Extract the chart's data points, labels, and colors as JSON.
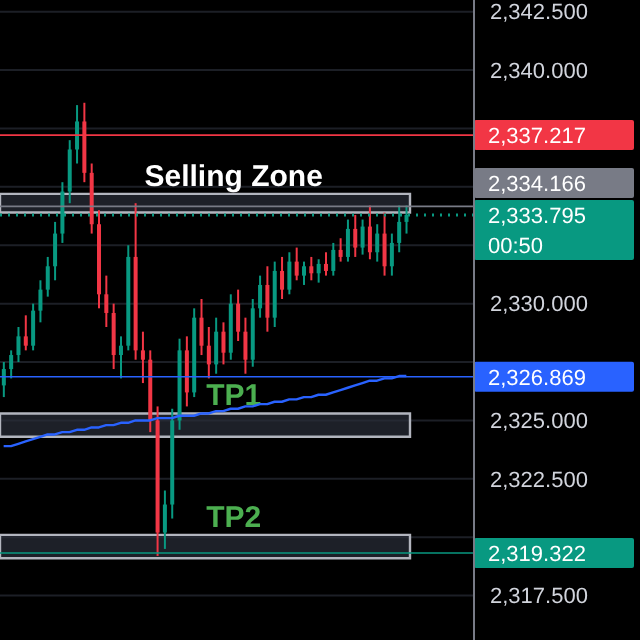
{
  "chart_data": {
    "type": "candlestick",
    "categories": [
      null,
      null,
      null,
      null,
      null,
      null,
      null,
      null,
      null,
      null,
      null,
      null,
      null,
      null,
      null,
      null,
      null,
      null,
      null,
      null,
      null,
      null,
      null,
      null,
      null,
      null,
      null,
      null,
      null,
      null,
      null,
      null,
      null,
      null,
      null,
      null,
      null,
      null,
      null,
      null,
      null,
      null,
      null,
      null,
      null,
      null,
      null,
      null,
      null,
      null,
      null,
      null,
      null,
      null,
      null,
      null
    ],
    "ohlc": [
      [
        2326.5,
        2327.5,
        2326.0,
        2327.2
      ],
      [
        2327.2,
        2328.0,
        2326.8,
        2327.8
      ],
      [
        2327.8,
        2329.0,
        2327.5,
        2328.6
      ],
      [
        2328.6,
        2329.5,
        2328.0,
        2328.2
      ],
      [
        2328.2,
        2330.0,
        2328.0,
        2329.7
      ],
      [
        2329.7,
        2331.0,
        2329.2,
        2330.6
      ],
      [
        2330.6,
        2332.0,
        2330.3,
        2331.6
      ],
      [
        2331.6,
        2333.5,
        2331.0,
        2333.0
      ],
      [
        2333.0,
        2335.2,
        2332.6,
        2334.8
      ],
      [
        2334.8,
        2337.0,
        2334.3,
        2336.6
      ],
      [
        2336.6,
        2338.5,
        2336.0,
        2337.8
      ],
      [
        2337.8,
        2338.6,
        2335.2,
        2335.6
      ],
      [
        2335.6,
        2336.0,
        2333.0,
        2333.4
      ],
      [
        2333.4,
        2334.0,
        2329.8,
        2330.4
      ],
      [
        2330.4,
        2331.2,
        2329.0,
        2329.6
      ],
      [
        2329.6,
        2330.0,
        2327.2,
        2327.8
      ],
      [
        2327.8,
        2328.6,
        2326.8,
        2328.2
      ],
      [
        2328.2,
        2332.5,
        2328.0,
        2332.0
      ],
      [
        2332.0,
        2334.3,
        2327.6,
        2328.0
      ],
      [
        2328.0,
        2328.8,
        2326.6,
        2327.6
      ],
      [
        2327.6,
        2328.0,
        2324.5,
        2325.0
      ],
      [
        2325.0,
        2325.6,
        2319.2,
        2320.2
      ],
      [
        2320.2,
        2322.0,
        2319.5,
        2321.4
      ],
      [
        2321.4,
        2325.5,
        2320.8,
        2325.0
      ],
      [
        2325.0,
        2328.5,
        2324.6,
        2328.0
      ],
      [
        2328.0,
        2328.6,
        2325.6,
        2326.2
      ],
      [
        2326.2,
        2329.8,
        2326.0,
        2329.4
      ],
      [
        2329.4,
        2330.2,
        2327.8,
        2328.2
      ],
      [
        2328.2,
        2329.0,
        2326.8,
        2327.4
      ],
      [
        2327.4,
        2329.4,
        2327.0,
        2328.8
      ],
      [
        2328.8,
        2329.2,
        2327.4,
        2327.9
      ],
      [
        2327.9,
        2330.4,
        2327.6,
        2330.0
      ],
      [
        2330.0,
        2330.6,
        2328.4,
        2328.8
      ],
      [
        2328.8,
        2329.4,
        2327.0,
        2327.6
      ],
      [
        2327.6,
        2330.2,
        2327.3,
        2329.8
      ],
      [
        2329.8,
        2331.2,
        2329.4,
        2330.8
      ],
      [
        2330.8,
        2331.6,
        2328.8,
        2329.4
      ],
      [
        2329.4,
        2331.8,
        2329.0,
        2331.4
      ],
      [
        2331.4,
        2332.0,
        2330.2,
        2330.6
      ],
      [
        2330.6,
        2332.2,
        2330.4,
        2331.8
      ],
      [
        2331.8,
        2332.4,
        2331.0,
        2331.2
      ],
      [
        2331.2,
        2331.8,
        2330.8,
        2331.6
      ],
      [
        2331.6,
        2332.0,
        2331.0,
        2331.3
      ],
      [
        2331.3,
        2331.9,
        2330.9,
        2331.7
      ],
      [
        2331.7,
        2332.2,
        2331.2,
        2331.4
      ],
      [
        2331.4,
        2332.6,
        2331.2,
        2332.3
      ],
      [
        2332.3,
        2332.8,
        2331.8,
        2332.0
      ],
      [
        2332.0,
        2333.6,
        2331.8,
        2333.2
      ],
      [
        2333.2,
        2333.8,
        2332.0,
        2332.4
      ],
      [
        2332.4,
        2333.6,
        2332.1,
        2333.3
      ],
      [
        2333.3,
        2334.2,
        2331.9,
        2332.2
      ],
      [
        2332.2,
        2333.4,
        2331.8,
        2333.0
      ],
      [
        2333.0,
        2333.9,
        2331.2,
        2331.6
      ],
      [
        2331.6,
        2333.0,
        2331.2,
        2332.6
      ],
      [
        2332.6,
        2334.2,
        2332.2,
        2333.5
      ],
      [
        2333.5,
        2334.2,
        2333.0,
        2333.8
      ]
    ],
    "series": [
      {
        "type": "line",
        "color": "#2962ff",
        "values": [
          2323.9,
          2323.9,
          2324.0,
          2324.1,
          2324.2,
          2324.3,
          2324.4,
          2324.4,
          2324.5,
          2324.5,
          2324.6,
          2324.6,
          2324.7,
          2324.7,
          2324.8,
          2324.8,
          2324.9,
          2324.9,
          2325.0,
          2325.0,
          2325.0,
          2325.1,
          2325.1,
          2325.1,
          2325.2,
          2325.2,
          2325.2,
          2325.3,
          2325.3,
          2325.4,
          2325.4,
          2325.5,
          2325.5,
          2325.6,
          2325.6,
          2325.7,
          2325.7,
          2325.8,
          2325.8,
          2325.9,
          2325.9,
          2326.0,
          2326.0,
          2326.1,
          2326.1,
          2326.2,
          2326.3,
          2326.4,
          2326.5,
          2326.6,
          2326.7,
          2326.7,
          2326.8,
          2326.8,
          2326.9,
          2326.9
        ]
      }
    ],
    "ylim": [
      2315.6,
      2343.0
    ],
    "yticks": [
      {
        "value": 2317.5,
        "label": "2,317.500"
      },
      {
        "value": 2320,
        "label": null
      },
      {
        "value": 2322.5,
        "label": "2,322.500"
      },
      {
        "value": 2325,
        "label": "2,325.000"
      },
      {
        "value": 2327.5,
        "label": null
      },
      {
        "value": 2330,
        "label": "2,330.000"
      },
      {
        "value": 2332.5,
        "label": null
      },
      {
        "value": 2335,
        "label": null
      },
      {
        "value": 2337.5,
        "label": null
      },
      {
        "value": 2340,
        "label": "2,340.000"
      },
      {
        "value": 2342.5,
        "label": "2,342.500"
      }
    ],
    "grid": "y",
    "bands": [
      {
        "axis": "y",
        "from": 2333.9,
        "to": 2334.7,
        "label": "Selling Zone",
        "color": "#2a2e39"
      },
      {
        "axis": "y",
        "from": 2324.3,
        "to": 2325.3,
        "label": "TP1",
        "color": "#2a2e39"
      },
      {
        "axis": "y",
        "from": 2319.1,
        "to": 2320.1,
        "label": "TP2",
        "color": "#2a2e39"
      }
    ],
    "ref_lines": [
      {
        "axis": "y",
        "value": 2337.217,
        "label": "2,337.217",
        "color": "#f23645",
        "line_style": "solid"
      },
      {
        "axis": "y",
        "value": 2334.166,
        "label": "2,334.166",
        "color": "#787b86",
        "line_style": "solid"
      },
      {
        "axis": "y",
        "value": 2333.795,
        "label": "2,333.795\n00:50",
        "color": "#089981",
        "line_style": "dotted"
      },
      {
        "axis": "y",
        "value": 2326.869,
        "label": "2,326.869",
        "color": "#2962ff",
        "line_style": "solid"
      },
      {
        "axis": "y",
        "value": 2319.322,
        "label": "2,319.322",
        "color": "#089981",
        "line_style": "solid"
      }
    ]
  }
}
